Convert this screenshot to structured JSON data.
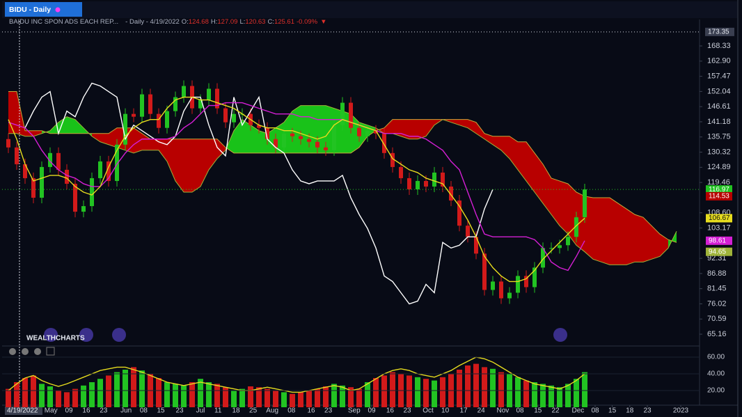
{
  "header": {
    "tab": "BIDU - Daily",
    "name": "BAIDU INC SPON ADS EACH REP...",
    "interval_date": "- Daily - 4/19/2022",
    "ohlc": [
      {
        "label": "O:",
        "value": 124.68
      },
      {
        "label": "H:",
        "value": 127.09
      },
      {
        "label": "L:",
        "value": 120.63
      },
      {
        "label": "C:",
        "value": 125.61
      }
    ],
    "change": {
      "value": -0.09,
      "label": "-0.09%"
    },
    "arrow": "▼"
  },
  "logo": "WEALTHCHARTS",
  "chart_data": {
    "type": "candlestick",
    "candles": {
      "up_color": "#22c322",
      "down_color": "#d21a1a",
      "open": [
        135,
        132,
        126,
        121,
        114,
        125,
        130,
        124,
        119,
        109,
        111,
        121,
        127,
        120,
        133,
        144,
        143,
        151,
        144,
        139,
        145,
        150,
        154,
        146,
        149,
        153,
        146,
        141,
        144,
        144,
        140,
        139,
        135,
        132,
        137,
        136,
        135,
        134,
        132,
        131,
        140,
        148,
        139,
        136,
        138,
        137,
        130,
        125,
        121,
        117,
        120,
        118,
        123,
        118,
        113,
        104,
        100,
        94,
        81,
        84,
        78,
        80,
        86,
        82,
        89,
        96,
        96,
        97,
        100,
        107
      ],
      "high": [
        137,
        134,
        128,
        123,
        127,
        132,
        132,
        126,
        121,
        113,
        123,
        129,
        129,
        135,
        146,
        146,
        153,
        153,
        146,
        147,
        152,
        156,
        156,
        151,
        155,
        155,
        148,
        146,
        146,
        146,
        142,
        141,
        137,
        139,
        139,
        138,
        137,
        136,
        134,
        142,
        150,
        150,
        141,
        140,
        140,
        139,
        132,
        127,
        123,
        122,
        122,
        125,
        125,
        120,
        115,
        106,
        102,
        96,
        86,
        86,
        82,
        88,
        88,
        91,
        98,
        98,
        99,
        102,
        109,
        119
      ],
      "low": [
        130,
        124,
        119,
        112,
        112,
        123,
        122,
        117,
        107,
        107,
        109,
        119,
        118,
        118,
        131,
        141,
        141,
        142,
        137,
        137,
        143,
        148,
        144,
        144,
        147,
        144,
        139,
        139,
        142,
        138,
        137,
        133,
        130,
        130,
        134,
        133,
        132,
        130,
        129,
        129,
        138,
        137,
        134,
        134,
        135,
        128,
        123,
        119,
        115,
        115,
        116,
        116,
        116,
        111,
        102,
        98,
        92,
        79,
        79,
        76,
        76,
        78,
        80,
        80,
        87,
        94,
        94,
        95,
        98,
        105
      ],
      "close": [
        132,
        126,
        121,
        114,
        125,
        130,
        124,
        119,
        109,
        111,
        121,
        127,
        120,
        133,
        144,
        143,
        151,
        144,
        139,
        145,
        150,
        154,
        146,
        149,
        153,
        146,
        141,
        144,
        144,
        140,
        139,
        135,
        132,
        137,
        136,
        135,
        134,
        132,
        131,
        140,
        148,
        139,
        136,
        138,
        137,
        130,
        125,
        121,
        117,
        120,
        118,
        123,
        118,
        113,
        104,
        100,
        94,
        81,
        84,
        78,
        80,
        86,
        82,
        89,
        96,
        96,
        97,
        100,
        107,
        116.97
      ]
    },
    "ichimoku": {
      "cloud_up_color": "#19c219",
      "cloud_down_color": "#b80000",
      "tenkan": {
        "color": "#e6dc1e",
        "values": [
          142,
          135,
          126,
          120,
          121,
          122,
          122,
          121,
          118,
          116,
          115,
          118,
          125,
          131,
          136,
          139,
          141,
          142,
          142,
          146,
          149,
          150,
          150,
          149,
          149,
          148,
          147,
          146,
          144,
          142,
          140,
          139,
          139,
          138,
          138,
          137,
          136,
          135,
          136,
          140,
          142,
          141,
          140,
          139,
          138,
          133,
          128,
          126,
          124,
          123,
          121,
          120,
          119,
          115,
          111,
          106,
          100,
          93,
          89,
          86,
          84,
          84,
          85,
          88,
          92,
          95,
          98,
          101,
          104,
          106.67
        ]
      },
      "kijun": {
        "color": "#d41fd4",
        "values": [
          141,
          140,
          139,
          136,
          131,
          127,
          124,
          122,
          121,
          119,
          118,
          118,
          121,
          126,
          130,
          133,
          135,
          135,
          135,
          135,
          136,
          139,
          141,
          144,
          147,
          147,
          148,
          148,
          148,
          147,
          146,
          145,
          144,
          144,
          144,
          143,
          143,
          142,
          142,
          142,
          142,
          141,
          140,
          139,
          138,
          137,
          137,
          137,
          136,
          136,
          135,
          133,
          131,
          127,
          124,
          116,
          108,
          101,
          100,
          100,
          100,
          100,
          100,
          99,
          96,
          91,
          89,
          88,
          93,
          98.61
        ]
      },
      "chikou": {
        "color": "#ffffff",
        "values": [
          null,
          null,
          139,
          145,
          150,
          152,
          137,
          145,
          143,
          150,
          155,
          154,
          152,
          150,
          135,
          140,
          138,
          136,
          134,
          133,
          136,
          145,
          150,
          150,
          140,
          132,
          129,
          150,
          140,
          145,
          150,
          135,
          132,
          130,
          124,
          120,
          119,
          120,
          120,
          120,
          122,
          114,
          108,
          103,
          96,
          86,
          84,
          80,
          76,
          77,
          83,
          80,
          98,
          96,
          97,
          100,
          100,
          110,
          117,
          null,
          null,
          null,
          null,
          null,
          null,
          null,
          null,
          null,
          null,
          null
        ]
      },
      "span_a": {
        "color": "#9fb43a",
        "values": [
          137,
          137,
          136,
          136,
          137,
          138,
          141,
          143,
          142,
          139,
          136,
          134,
          133,
          132,
          131,
          130,
          131,
          131,
          131,
          127,
          120,
          116,
          116,
          118,
          124,
          128,
          131,
          138,
          142,
          140,
          138,
          137,
          139,
          141,
          145,
          147,
          147,
          147,
          147,
          146,
          145,
          144,
          141,
          140,
          139,
          137,
          137,
          136,
          135,
          135,
          136,
          140,
          142,
          141,
          140,
          139,
          137,
          135,
          133,
          131,
          128,
          124,
          120,
          116,
          112,
          108,
          104,
          101,
          97,
          94.65,
          92,
          91,
          90,
          90,
          90,
          91,
          91,
          92,
          93,
          96,
          102
        ]
      },
      "span_b": {
        "color": "#c8a83a",
        "values": [
          152,
          152,
          138,
          138,
          138,
          137,
          137,
          137,
          137,
          137,
          137,
          137,
          137,
          139,
          139,
          139,
          137,
          135,
          135,
          135,
          135,
          135,
          135,
          135,
          135,
          135,
          132,
          130,
          130,
          130,
          130,
          130,
          130,
          130,
          130,
          130,
          130,
          130,
          130,
          130,
          130,
          130,
          132,
          136,
          138,
          139,
          142,
          142,
          142,
          142,
          142,
          142,
          142,
          142,
          142,
          142,
          141,
          137,
          136,
          136,
          136,
          134,
          134,
          130,
          126,
          121,
          120,
          119,
          116,
          114.53,
          114,
          114,
          114,
          112,
          110,
          108,
          107,
          104,
          101,
          99,
          98
        ]
      }
    },
    "ylim": [
      61.93,
      177.3
    ],
    "yticks": [
      168.33,
      {
        "value": 162.9,
        "label": "162.90"
      },
      157.47,
      152.04,
      146.61,
      141.18,
      135.75,
      130.32,
      124.89,
      119.46,
      {
        "value": 108.6,
        "label": "108.60"
      },
      103.17,
      92.31,
      86.88,
      81.45,
      76.02,
      70.59,
      65.16
    ],
    "xticks": [
      {
        "value": 5.1,
        "label": "May"
      },
      {
        "value": 7.25,
        "label": "09"
      },
      {
        "value": 9.33,
        "label": "16"
      },
      {
        "value": 11.4,
        "label": "23"
      },
      {
        "value": 14.1,
        "label": "Jun"
      },
      {
        "value": 16.2,
        "label": "08"
      },
      {
        "value": 18.25,
        "label": "15"
      },
      {
        "value": 20.5,
        "label": "23"
      },
      {
        "value": 23,
        "label": "Jul"
      },
      {
        "value": 25.1,
        "label": "11"
      },
      {
        "value": 27.25,
        "label": "18"
      },
      {
        "value": 29.3,
        "label": "25"
      },
      {
        "value": 31.6,
        "label": "Aug"
      },
      {
        "value": 33.9,
        "label": "08"
      },
      {
        "value": 36.25,
        "label": "16"
      },
      {
        "value": 38.3,
        "label": "23"
      },
      {
        "value": 41.4,
        "label": "Sep"
      },
      {
        "value": 43.5,
        "label": "09"
      },
      {
        "value": 45.7,
        "label": "16"
      },
      {
        "value": 47.75,
        "label": "23"
      },
      {
        "value": 50.25,
        "label": "Oct"
      },
      {
        "value": 52.3,
        "label": "10"
      },
      {
        "value": 54.5,
        "label": "17"
      },
      {
        "value": 56.6,
        "label": "24"
      },
      {
        "value": 59.2,
        "label": "Nov"
      },
      {
        "value": 61.25,
        "label": "08"
      },
      {
        "value": 63.4,
        "label": "15"
      },
      {
        "value": 65.5,
        "label": "22"
      },
      {
        "value": 68.2,
        "label": "Dec"
      },
      {
        "value": 70.25,
        "label": "08"
      },
      {
        "value": 72.3,
        "label": "15"
      },
      {
        "value": 74.4,
        "label": "18"
      },
      {
        "value": 76.5,
        "label": "23"
      },
      {
        "value": 80.5,
        "label": "2023"
      }
    ],
    "crosshair": {
      "x": {
        "value": 1.33,
        "label": "4/19/2022"
      },
      "y": 173.35
    },
    "oscillator": {
      "type": "bar",
      "ylim": [
        0,
        70
      ],
      "yticks": [
        {
          "value": 60,
          "label": "60.00"
        },
        {
          "value": 40,
          "label": "40.00"
        },
        {
          "value": 20,
          "label": "20.00"
        }
      ],
      "values": [
        22,
        30,
        35,
        38,
        28,
        25,
        20,
        18,
        22,
        26,
        30,
        34,
        38,
        42,
        45,
        48,
        44,
        40,
        35,
        30,
        28,
        26,
        30,
        34,
        30,
        28,
        24,
        20,
        22,
        25,
        24,
        22,
        20,
        18,
        16,
        18,
        20,
        22,
        25,
        28,
        26,
        24,
        22,
        30,
        35,
        38,
        42,
        40,
        38,
        36,
        34,
        32,
        36,
        40,
        45,
        50,
        52,
        48,
        46,
        42,
        40,
        36,
        32,
        30,
        28,
        26,
        24,
        28,
        34,
        42
      ],
      "line": {
        "color": "#e6dc1e",
        "values": [
          20,
          28,
          35,
          38,
          32,
          28,
          25,
          28,
          32,
          36,
          40,
          44,
          46,
          48,
          48,
          45,
          42,
          38,
          34,
          30,
          28,
          26,
          28,
          30,
          28,
          26,
          24,
          22,
          20,
          20,
          22,
          24,
          22,
          20,
          18,
          18,
          20,
          22,
          24,
          26,
          24,
          20,
          22,
          28,
          34,
          40,
          44,
          46,
          44,
          40,
          38,
          36,
          40,
          44,
          50,
          55,
          60,
          58,
          54,
          48,
          42,
          36,
          32,
          28,
          26,
          24,
          22,
          26,
          32,
          40
        ]
      }
    }
  }
}
